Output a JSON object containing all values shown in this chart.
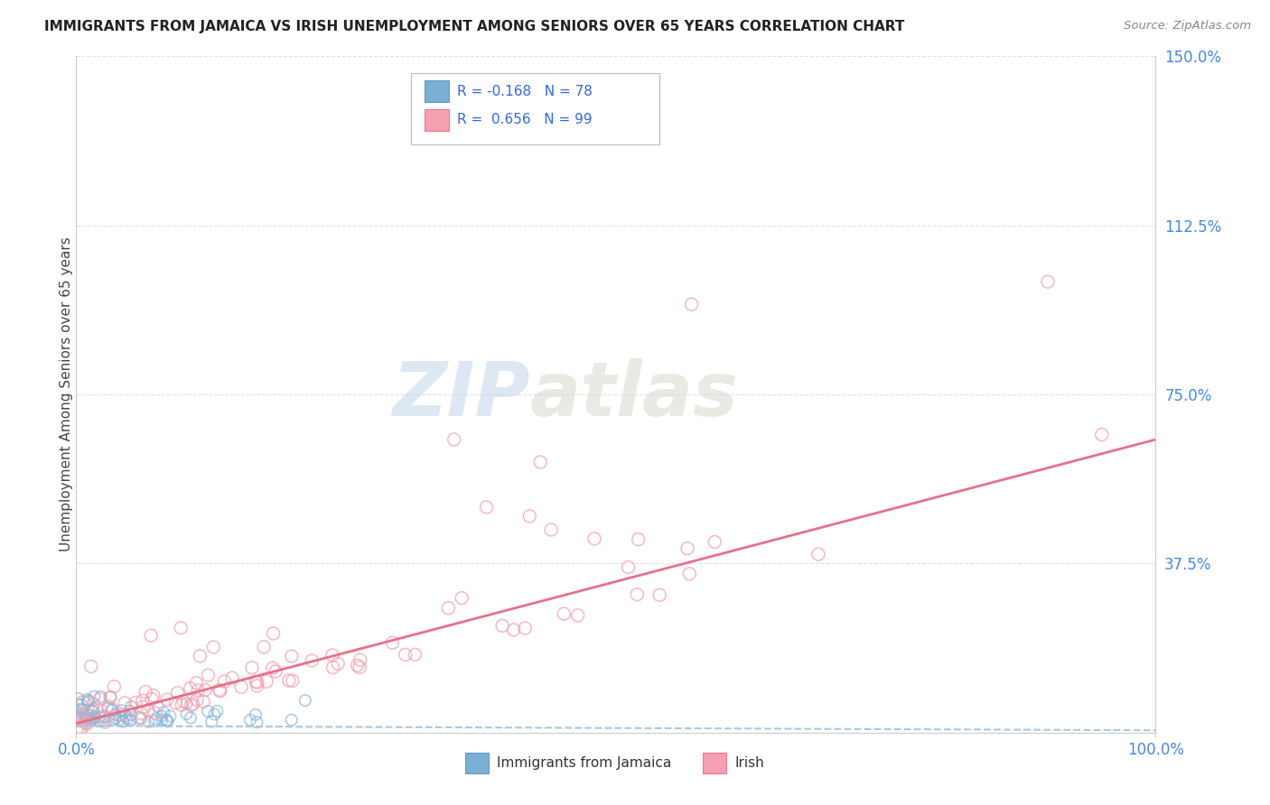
{
  "title": "IMMIGRANTS FROM JAMAICA VS IRISH UNEMPLOYMENT AMONG SENIORS OVER 65 YEARS CORRELATION CHART",
  "source": "Source: ZipAtlas.com",
  "ylabel": "Unemployment Among Seniors over 65 years",
  "watermark_zip": "ZIP",
  "watermark_atlas": "atlas",
  "xlim": [
    0.0,
    100.0
  ],
  "ylim": [
    0.0,
    150.0
  ],
  "xtick_vals": [
    0.0,
    100.0
  ],
  "xticklabels": [
    "0.0%",
    "100.0%"
  ],
  "ytick_vals": [
    0.0,
    37.5,
    75.0,
    112.5,
    150.0
  ],
  "yticklabels": [
    "",
    "37.5%",
    "75.0%",
    "112.5%",
    "150.0%"
  ],
  "legend_text1": "R = -0.168  N = 78",
  "legend_text2": "R =  0.656  N = 99",
  "legend_color1": "#7BAFD4",
  "legend_color2": "#F4A0B0",
  "color_blue_scatter": "#8AB8D8",
  "color_pink_scatter": "#F4A0B0",
  "color_trendline_blue": "#A8C8E0",
  "color_trendline_pink": "#E8708A",
  "color_tick_labels": "#4488EE",
  "color_grid": "#E0E0E0",
  "blue_trendline": [
    0,
    1.5,
    100,
    0.5
  ],
  "pink_trendline": [
    0,
    2.0,
    100,
    65.0
  ],
  "bottom_legend_label1": "Immigrants from Jamaica",
  "bottom_legend_label2": "Irish"
}
